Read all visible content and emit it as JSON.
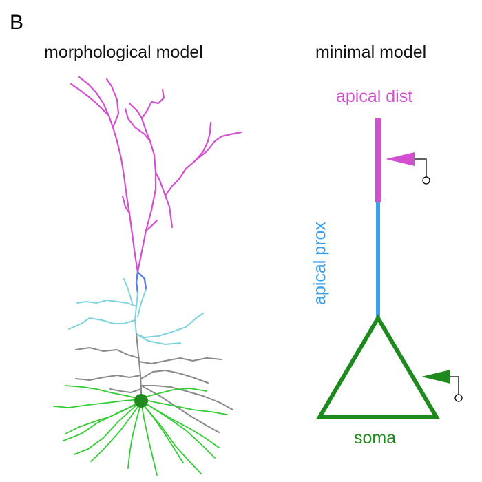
{
  "panel": {
    "letter": "B"
  },
  "headings": {
    "left": "morphological model",
    "right": "minimal model"
  },
  "compartments": {
    "apical_dist": "apical dist",
    "apical_prox": "apical prox",
    "soma": "soma"
  },
  "colors": {
    "apical_dist": "#d24fd0",
    "apical_prox": "#3aa0ee",
    "soma": "#1e8a1e",
    "basal_grey": "#8a8a8a",
    "oblique_cyan": "#7fd3e0",
    "basal_green": "#33cc33"
  },
  "icons": [
    "synapse-input-arrow",
    "electrode-probe"
  ]
}
